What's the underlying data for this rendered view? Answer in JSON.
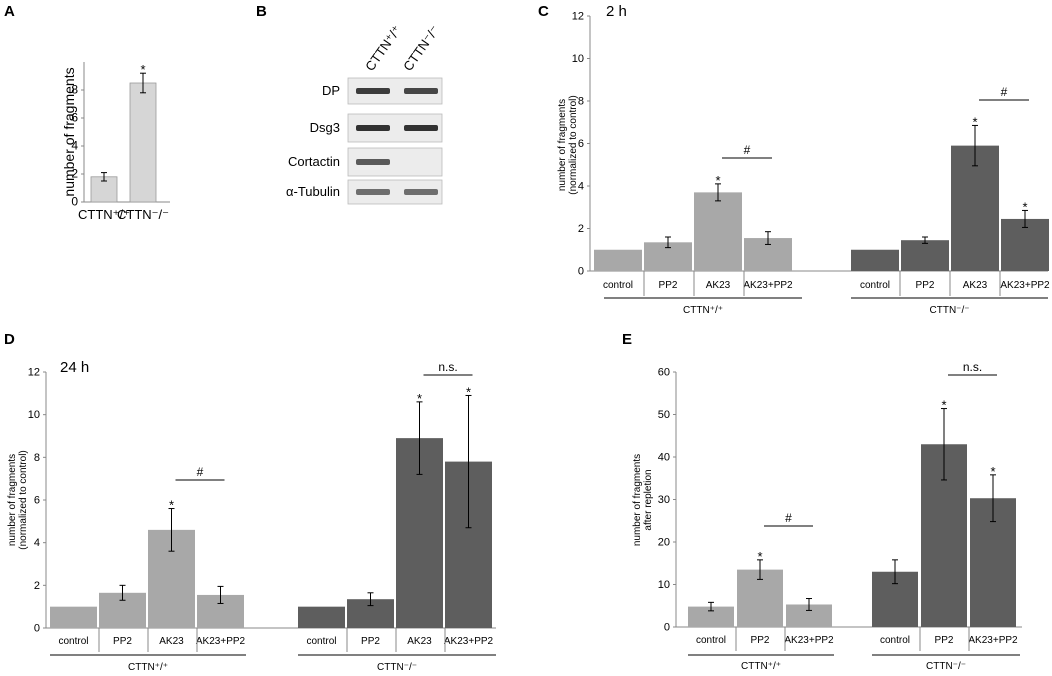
{
  "colors": {
    "wt_bar": "#a8a8a8",
    "ko_bar": "#5e5e5e",
    "light_bar": "#d6d6d6",
    "axis": "#888888",
    "text": "#000000"
  },
  "chart_data": [
    {
      "panel": "A",
      "type": "bar",
      "title": "",
      "ylabel": "number of fragments",
      "ylim": [
        0,
        10
      ],
      "yticks": [
        0,
        2,
        4,
        6,
        8
      ],
      "categories": [
        "CTTN⁺/⁺",
        "CTTN⁻/⁻"
      ],
      "values": [
        1.8,
        8.5
      ],
      "errors": [
        0.3,
        0.7
      ],
      "significance": [
        "",
        "*"
      ],
      "group_labels": [],
      "brackets": []
    },
    {
      "panel": "B",
      "type": "blot",
      "lane_labels": [
        "CTTN⁺/⁺",
        "CTTN⁻/⁻"
      ],
      "rows": [
        {
          "label": "DP",
          "lane_intensity": [
            0.85,
            0.8
          ]
        },
        {
          "label": "Dsg3",
          "lane_intensity": [
            0.9,
            0.9
          ]
        },
        {
          "label": "Cortactin",
          "lane_intensity": [
            0.7,
            0.0
          ]
        },
        {
          "label": "α-Tubulin",
          "lane_intensity": [
            0.6,
            0.6
          ]
        }
      ]
    },
    {
      "panel": "C",
      "type": "bar",
      "title": "2 h",
      "ylabel_lines": [
        "number of fragments",
        "(normalized to control)"
      ],
      "ylim": [
        0,
        12
      ],
      "yticks": [
        0,
        2,
        4,
        6,
        8,
        10,
        12
      ],
      "categories": [
        "control",
        "PP2",
        "AK23",
        "AK23+PP2",
        "control",
        "PP2",
        "AK23",
        "AK23+PP2"
      ],
      "values": [
        1.0,
        1.35,
        3.7,
        1.55,
        1.0,
        1.45,
        5.9,
        2.45
      ],
      "errors": [
        0,
        0.25,
        0.4,
        0.3,
        0,
        0.15,
        0.95,
        0.4
      ],
      "groups": [
        0,
        0,
        0,
        0,
        1,
        1,
        1,
        1
      ],
      "significance": [
        "",
        "",
        "*",
        "",
        "",
        "",
        "*",
        "*"
      ],
      "group_labels": [
        "CTTN⁺/⁺",
        "CTTN⁻/⁻"
      ],
      "brackets": [
        {
          "from": 2,
          "to": 3,
          "label": "#"
        },
        {
          "from": 6,
          "to": 7,
          "label": "#"
        }
      ]
    },
    {
      "panel": "D",
      "type": "bar",
      "title": "24 h",
      "ylabel_lines": [
        "number of fragments",
        "(normalized to control)"
      ],
      "ylim": [
        0,
        12
      ],
      "yticks": [
        0,
        2,
        4,
        6,
        8,
        10,
        12
      ],
      "categories": [
        "control",
        "PP2",
        "AK23",
        "AK23+PP2",
        "control",
        "PP2",
        "AK23",
        "AK23+PP2"
      ],
      "values": [
        1.0,
        1.65,
        4.6,
        1.55,
        1.0,
        1.35,
        8.9,
        7.8
      ],
      "errors": [
        0,
        0.35,
        1.0,
        0.4,
        0,
        0.3,
        1.7,
        3.1
      ],
      "groups": [
        0,
        0,
        0,
        0,
        1,
        1,
        1,
        1
      ],
      "significance": [
        "",
        "",
        "*",
        "",
        "",
        "",
        "*",
        "*"
      ],
      "group_labels": [
        "CTTN⁺/⁺",
        "CTTN⁻/⁻"
      ],
      "brackets": [
        {
          "from": 2,
          "to": 3,
          "label": "#"
        },
        {
          "from": 6,
          "to": 7,
          "label": "n.s."
        }
      ]
    },
    {
      "panel": "E",
      "type": "bar",
      "title": "",
      "ylabel_lines": [
        "number of fragments",
        "after repletion"
      ],
      "ylim": [
        0,
        60
      ],
      "yticks": [
        0,
        10,
        20,
        30,
        40,
        50,
        60
      ],
      "categories": [
        "control",
        "PP2",
        "AK23+PP2",
        "control",
        "PP2",
        "AK23+PP2"
      ],
      "values": [
        4.8,
        13.5,
        5.3,
        13.0,
        43.0,
        30.3
      ],
      "errors": [
        1.0,
        2.3,
        1.4,
        2.8,
        8.4,
        5.5
      ],
      "groups": [
        0,
        0,
        0,
        1,
        1,
        1
      ],
      "significance": [
        "",
        "*",
        "",
        "",
        "*",
        "*"
      ],
      "group_labels": [
        "CTTN⁺/⁺",
        "CTTN⁻/⁻"
      ],
      "brackets": [
        {
          "from": 1,
          "to": 2,
          "label": "#"
        },
        {
          "from": 4,
          "to": 5,
          "label": "n.s."
        }
      ]
    }
  ]
}
